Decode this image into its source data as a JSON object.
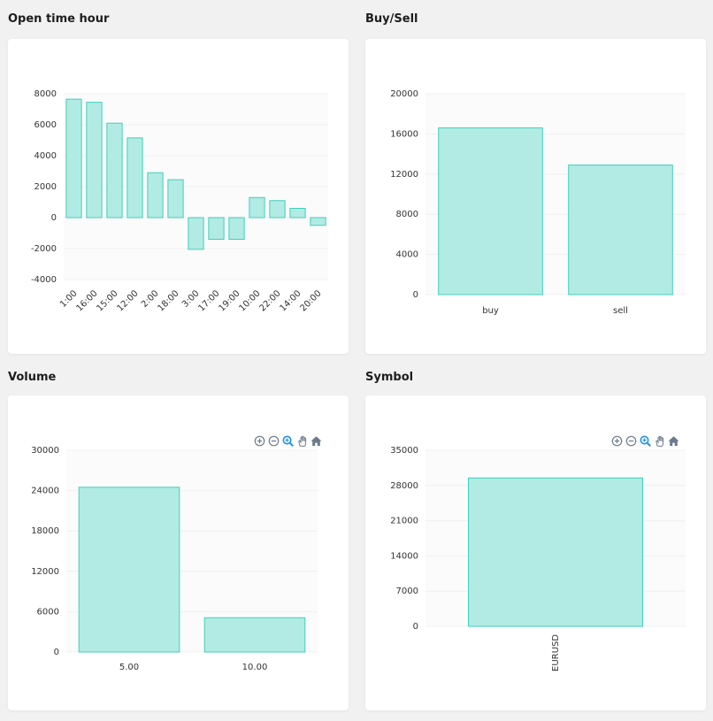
{
  "colors": {
    "bar_fill": "#b2ebe3",
    "bar_stroke": "#3fcfbd",
    "plot_bg": "#fbfbfb",
    "grid": "#f0f0f0",
    "toolbar_icon": "#6b7b8c",
    "toolbar_active": "#1f8ef1"
  },
  "toolbar": {
    "icons": [
      "zoom-in-icon",
      "zoom-out-icon",
      "selection-zoom-icon",
      "pan-hand-icon",
      "reset-home-icon"
    ]
  },
  "chart_data": [
    {
      "type": "bar",
      "title": "Open time hour",
      "categories": [
        "1:00",
        "16:00",
        "15:00",
        "12:00",
        "2:00",
        "18:00",
        "3:00",
        "17:00",
        "19:00",
        "10:00",
        "22:00",
        "14:00",
        "20:00"
      ],
      "values": [
        7650,
        7450,
        6100,
        5150,
        2900,
        2450,
        -2050,
        -1400,
        -1400,
        1300,
        1100,
        600,
        -500
      ],
      "ylim": [
        -4000,
        8000
      ],
      "yticks": [
        "8000",
        "6000",
        "4000",
        "2000",
        "0",
        "-2000",
        "-4000"
      ],
      "xlabel_rotation": "diagonal",
      "grid": true,
      "toolbar": false
    },
    {
      "type": "bar",
      "title": "Buy/Sell",
      "categories": [
        "buy",
        "sell"
      ],
      "values": [
        16600,
        12900
      ],
      "ylim": [
        0,
        20000
      ],
      "yticks": [
        "20000",
        "16000",
        "12000",
        "8000",
        "4000",
        "0"
      ],
      "grid": true,
      "toolbar": false
    },
    {
      "type": "bar",
      "title": "Volume",
      "categories": [
        "5.00",
        "10.00"
      ],
      "values": [
        24500,
        5100
      ],
      "ylim": [
        0,
        30000
      ],
      "yticks": [
        "30000",
        "24000",
        "18000",
        "12000",
        "6000",
        "0"
      ],
      "grid": true,
      "toolbar": true
    },
    {
      "type": "bar",
      "title": "Symbol",
      "categories": [
        "EURUSD"
      ],
      "values": [
        29500
      ],
      "ylim": [
        0,
        35000
      ],
      "yticks": [
        "35000",
        "28000",
        "21000",
        "14000",
        "7000",
        "0"
      ],
      "xlabel_rotation": "vertical",
      "grid": true,
      "toolbar": true
    }
  ]
}
